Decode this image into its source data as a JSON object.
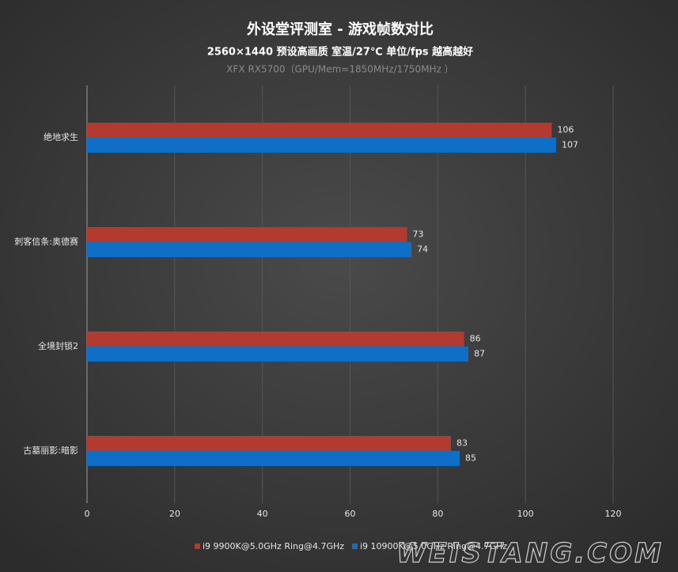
{
  "chart_data": {
    "type": "bar",
    "orientation": "horizontal",
    "title": "外设堂评测室 -  游戏帧数对比",
    "subtitle": "2560×1440 预设高画质 室温/27℃  单位/fps  越高越好",
    "note": "XFX RX5700（GPU/Mem=1850MHz/1750MHz ）",
    "watermark": "WEISTANG.COM",
    "categories": [
      "绝地求生",
      "刺客信条:奥德赛",
      "全境封锁2",
      "古墓丽影:暗影"
    ],
    "series": [
      {
        "name": "i9 9900K@5.0GHz Ring@4.7GHz",
        "color": "#b23a2f",
        "values": [
          106,
          73,
          86,
          83
        ]
      },
      {
        "name": "i9 10900K@5.0GHz Ring@4.7GHz",
        "color": "#0f6fc6",
        "values": [
          107,
          74,
          87,
          85
        ]
      }
    ],
    "xlim": [
      0,
      120
    ],
    "xticks": [
      0,
      20,
      40,
      60,
      80,
      100,
      120
    ],
    "grid": true,
    "legend": "bottom"
  }
}
